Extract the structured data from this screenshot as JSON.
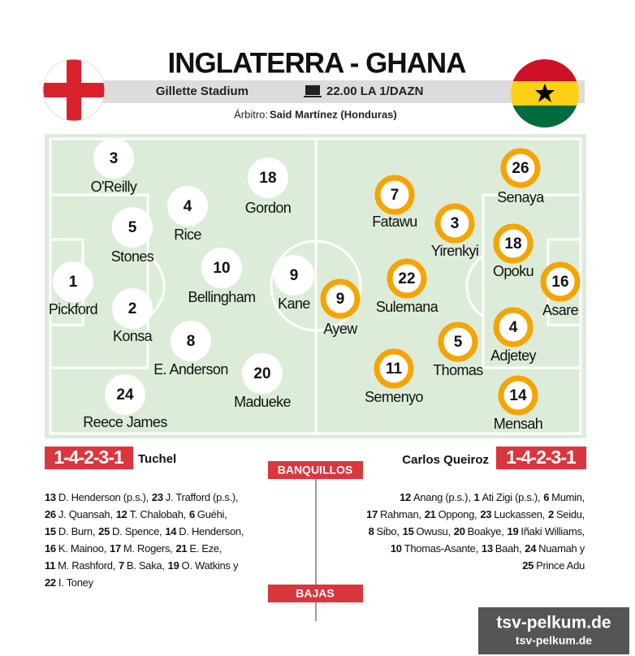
{
  "header": {
    "title": "INGLATERRA - GHANA",
    "venue": "Gillette Stadium",
    "broadcast": "22.00 LA 1/DAZN",
    "referee_label": "Árbitro:",
    "referee": "Said Martínez (Honduras)"
  },
  "home": {
    "formation": "1-4-2-3-1",
    "coach": "Tuchel",
    "players": [
      {
        "number": "3",
        "name": "O'Reilly"
      },
      {
        "number": "18",
        "name": "Gordon"
      },
      {
        "number": "4",
        "name": "Rice"
      },
      {
        "number": "5",
        "name": "Stones"
      },
      {
        "number": "1",
        "name": "Pickford"
      },
      {
        "number": "10",
        "name": "Bellingham"
      },
      {
        "number": "9",
        "name": "Kane"
      },
      {
        "number": "2",
        "name": "Konsa"
      },
      {
        "number": "8",
        "name": "E. Anderson"
      },
      {
        "number": "20",
        "name": "Madueke"
      },
      {
        "number": "24",
        "name": "Reece James"
      }
    ],
    "bench": [
      [
        [
          "13",
          "D. Henderson (p.s.),"
        ],
        [
          "23",
          "J. Trafford (p.s.),"
        ]
      ],
      [
        [
          "26",
          "J. Quansah,"
        ],
        [
          "12",
          "T. Chalobah,"
        ],
        [
          "6",
          "Guéhi,"
        ]
      ],
      [
        [
          "15",
          "D. Burn,"
        ],
        [
          "25",
          "D. Spence,"
        ],
        [
          "14",
          "D. Henderson,"
        ]
      ],
      [
        [
          "16",
          "K. Mainoo,"
        ],
        [
          "17",
          "M. Rogers,"
        ],
        [
          "21",
          "E. Eze,"
        ]
      ],
      [
        [
          "11",
          "M. Rashford,"
        ],
        [
          "7",
          "B. Saka,"
        ],
        [
          "19",
          "O. Watkins y"
        ]
      ],
      [
        [
          "22",
          "I. Toney"
        ]
      ]
    ]
  },
  "away": {
    "formation": "1-4-2-3-1",
    "coach": "Carlos Queiroz",
    "players": [
      {
        "number": "7",
        "name": "Fatawu"
      },
      {
        "number": "3",
        "name": "Yirenkyi"
      },
      {
        "number": "26",
        "name": "Senaya"
      },
      {
        "number": "18",
        "name": "Opoku"
      },
      {
        "number": "16",
        "name": "Asare"
      },
      {
        "number": "22",
        "name": "Sulemana"
      },
      {
        "number": "9",
        "name": "Ayew"
      },
      {
        "number": "4",
        "name": "Adjetey"
      },
      {
        "number": "5",
        "name": "Thomas"
      },
      {
        "number": "11",
        "name": "Semenyo"
      },
      {
        "number": "14",
        "name": "Mensah"
      }
    ],
    "bench": [
      [
        [
          "12",
          "Anang (p.s.),"
        ],
        [
          "1",
          "Ati Zigi (p.s.),"
        ],
        [
          "6",
          "Mumin,"
        ]
      ],
      [
        [
          "17",
          "Rahman,"
        ],
        [
          "21",
          "Oppong,"
        ],
        [
          "23",
          "Luckassen,"
        ],
        [
          "2",
          "Seidu,"
        ]
      ],
      [
        [
          "8",
          "Sibo,"
        ],
        [
          "15",
          "Owusu,"
        ],
        [
          "20",
          "Boakye,"
        ],
        [
          "19",
          "Iñaki Williams,"
        ]
      ],
      [
        [
          "10",
          "Thomas-Asante,"
        ],
        [
          "13",
          "Baah,"
        ],
        [
          "24",
          "Nuamah y"
        ]
      ],
      [
        [
          "25",
          "Prince Adu"
        ]
      ]
    ]
  },
  "bench_label": "BANQUILLOS",
  "absences_label": "BAJAS",
  "watermark": {
    "large": "tsv-pelkum.de",
    "small": "tsv-pelkum.de"
  }
}
